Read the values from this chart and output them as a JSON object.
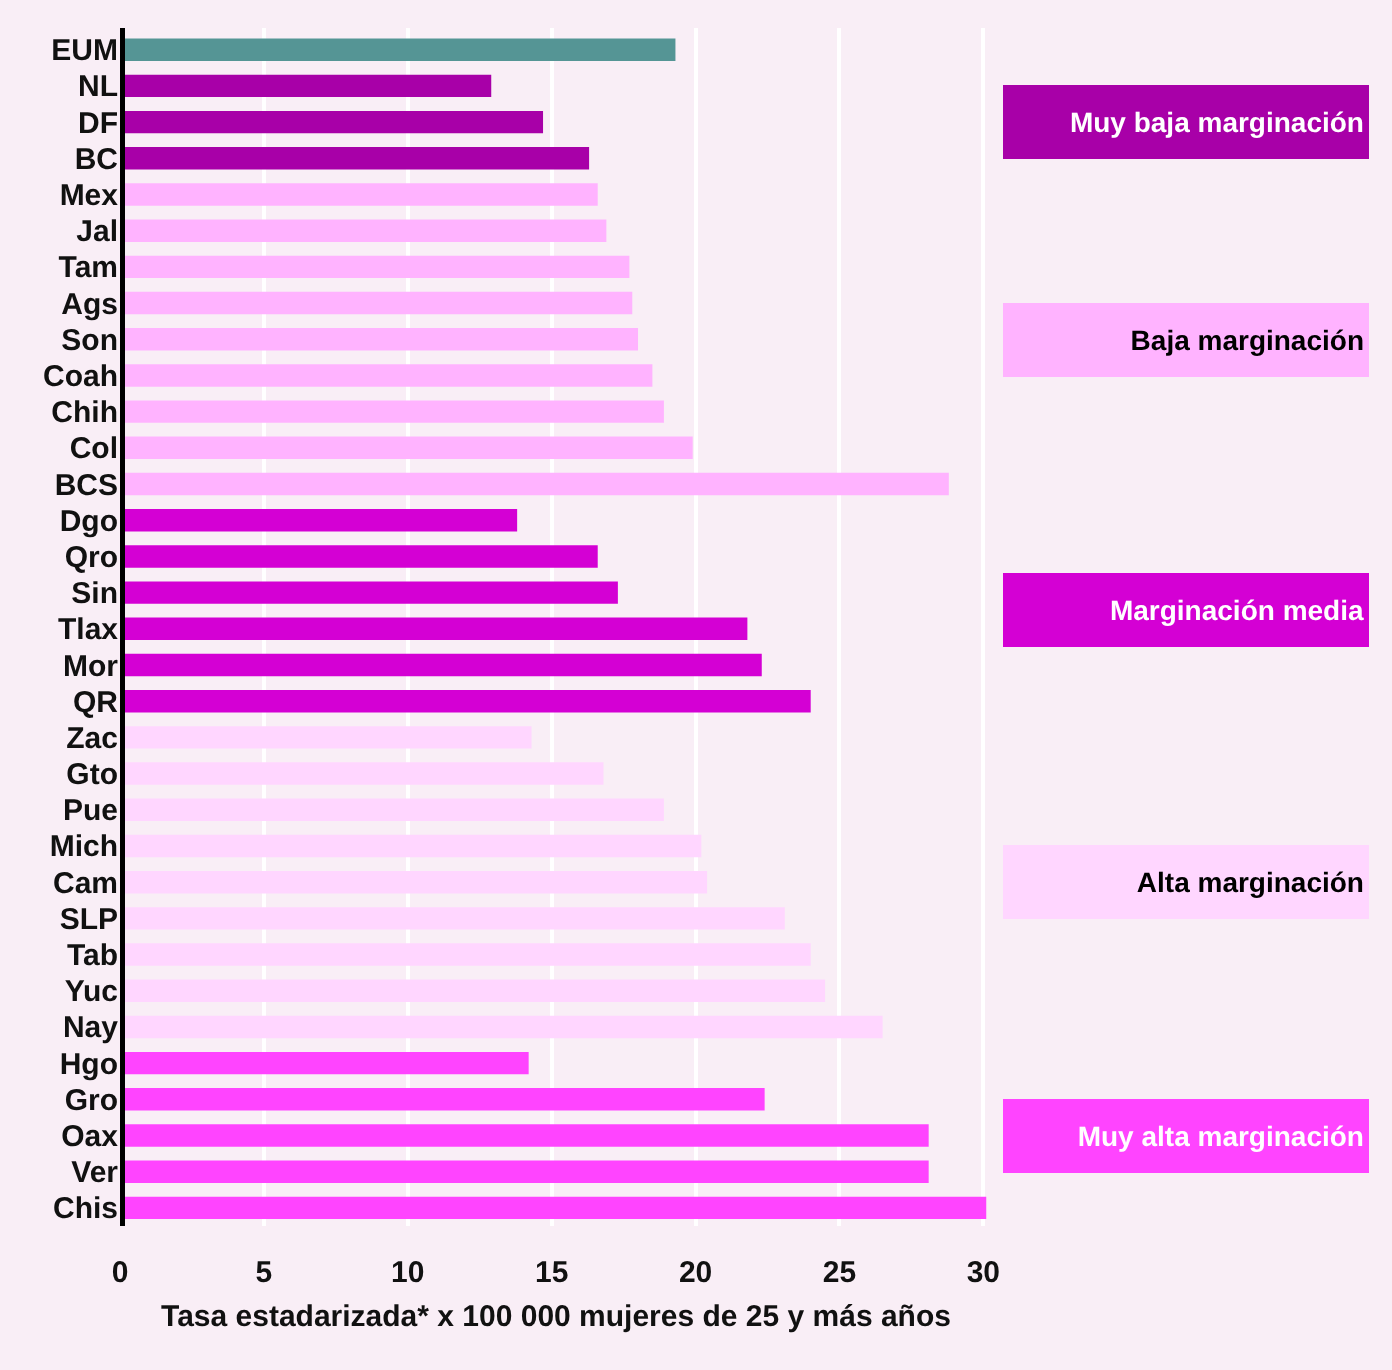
{
  "chart_data": {
    "type": "bar",
    "orientation": "horizontal",
    "xlabel": "Tasa estadarizada* x 100 000 mujeres de 25 y más años",
    "categories": [
      "EUM",
      "NL",
      "DF",
      "BC",
      "Mex",
      "Jal",
      "Tam",
      "Ags",
      "Son",
      "Coah",
      "Chih",
      "Col",
      "BCS",
      "Dgo",
      "Qro",
      "Sin",
      "Tlax",
      "Mor",
      "QR",
      "Zac",
      "Gto",
      "Pue",
      "Mich",
      "Cam",
      "SLP",
      "Tab",
      "Yuc",
      "Nay",
      "Hgo",
      "Gro",
      "Oax",
      "Ver",
      "Chis"
    ],
    "series": [
      {
        "color": "#559595",
        "values": [
          19.3,
          null,
          null,
          null,
          null,
          null,
          null,
          null,
          null,
          null,
          null,
          null,
          null,
          null,
          null,
          null,
          null,
          null,
          null,
          null,
          null,
          null,
          null,
          null,
          null,
          null,
          null,
          null,
          null,
          null,
          null,
          null,
          null
        ]
      },
      {
        "name": "Muy baja marginación",
        "color": "#a800a8",
        "values": [
          null,
          12.9,
          14.7,
          16.3,
          null,
          null,
          null,
          null,
          null,
          null,
          null,
          null,
          null,
          null,
          null,
          null,
          null,
          null,
          null,
          null,
          null,
          null,
          null,
          null,
          null,
          null,
          null,
          null,
          null,
          null,
          null,
          null,
          null
        ]
      },
      {
        "name": "Baja marginación",
        "color": "#ffb3ff",
        "values": [
          null,
          null,
          null,
          null,
          16.6,
          16.9,
          17.7,
          17.8,
          18.0,
          18.5,
          18.9,
          19.9,
          28.8,
          null,
          null,
          null,
          null,
          null,
          null,
          null,
          null,
          null,
          null,
          null,
          null,
          null,
          null,
          null,
          null,
          null,
          null,
          null,
          null
        ]
      },
      {
        "name": "Marginación media",
        "color": "#d400d4",
        "values": [
          null,
          null,
          null,
          null,
          null,
          null,
          null,
          null,
          null,
          null,
          null,
          null,
          null,
          13.8,
          16.6,
          17.3,
          21.8,
          22.3,
          24.0,
          null,
          null,
          null,
          null,
          null,
          null,
          null,
          null,
          null,
          null,
          null,
          null,
          null,
          null
        ]
      },
      {
        "name": "Alta marginación",
        "color": "#ffd6ff",
        "values": [
          null,
          null,
          null,
          null,
          null,
          null,
          null,
          null,
          null,
          null,
          null,
          null,
          null,
          null,
          null,
          null,
          null,
          null,
          null,
          14.3,
          16.8,
          18.9,
          20.2,
          20.4,
          23.1,
          24.0,
          24.5,
          26.5,
          null,
          null,
          null,
          null,
          null
        ]
      },
      {
        "name": "Muy alta marginación",
        "color": "#ff44ff",
        "values": [
          null,
          null,
          null,
          null,
          null,
          null,
          null,
          null,
          null,
          null,
          null,
          null,
          null,
          null,
          null,
          null,
          null,
          null,
          null,
          null,
          null,
          null,
          null,
          null,
          null,
          null,
          null,
          null,
          14.2,
          22.4,
          28.1,
          28.1,
          30.1
        ]
      }
    ],
    "xlim": [
      0,
      30.3
    ],
    "xticks": [
      0,
      5,
      10,
      15,
      20,
      25,
      30
    ],
    "grid": "x",
    "legend": "right"
  }
}
